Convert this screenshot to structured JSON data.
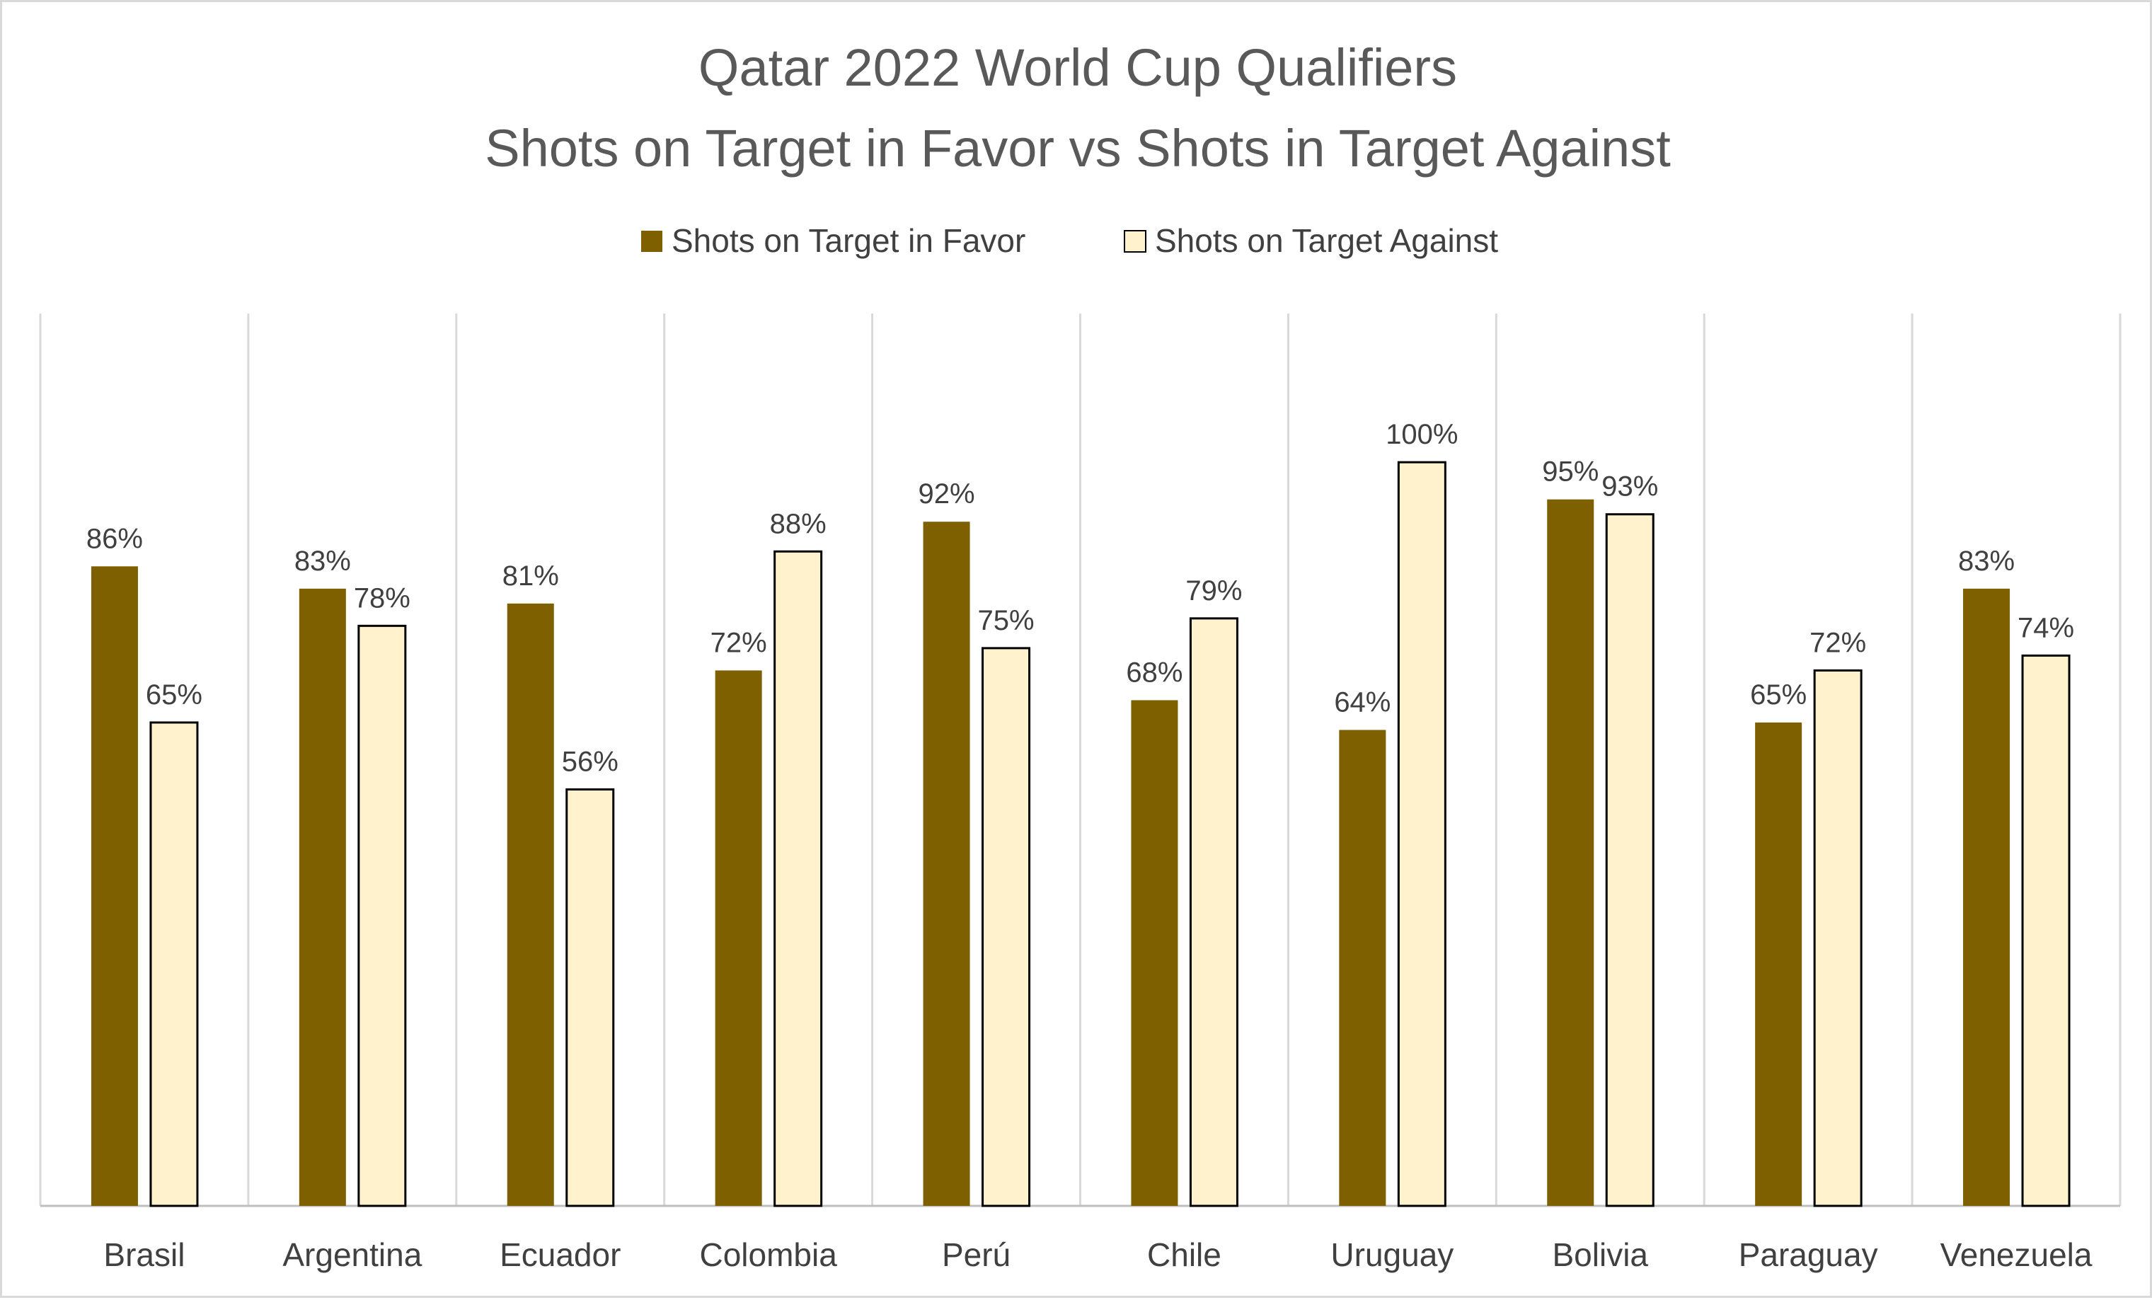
{
  "chart_data": {
    "type": "bar",
    "title": "Qatar 2022 World Cup Qualifiers",
    "subtitle": "Shots on Target in Favor vs Shots in Target Against",
    "categories": [
      "Brasil",
      "Argentina",
      "Ecuador",
      "Colombia",
      "Perú",
      "Chile",
      "Uruguay",
      "Bolivia",
      "Paraguay",
      "Venezuela"
    ],
    "series": [
      {
        "name": "Shots on Target in Favor",
        "color": "#7f6000",
        "values": [
          0.86,
          0.83,
          0.81,
          0.72,
          0.92,
          0.68,
          0.64,
          0.95,
          0.65,
          0.83
        ],
        "labels": [
          "86%",
          "83%",
          "81%",
          "72%",
          "92%",
          "68%",
          "64%",
          "95%",
          "65%",
          "83%"
        ]
      },
      {
        "name": "Shots on Target Against",
        "color": "#fff2cc",
        "values": [
          0.65,
          0.78,
          0.56,
          0.88,
          0.75,
          0.79,
          1.0,
          0.93,
          0.72,
          0.74
        ],
        "labels": [
          "65%",
          "78%",
          "56%",
          "88%",
          "75%",
          "79%",
          "100%",
          "93%",
          "72%",
          "74%"
        ]
      }
    ],
    "ylim": [
      0,
      1.2
    ],
    "legend_position": "top",
    "vertical_category_gridlines": true
  }
}
